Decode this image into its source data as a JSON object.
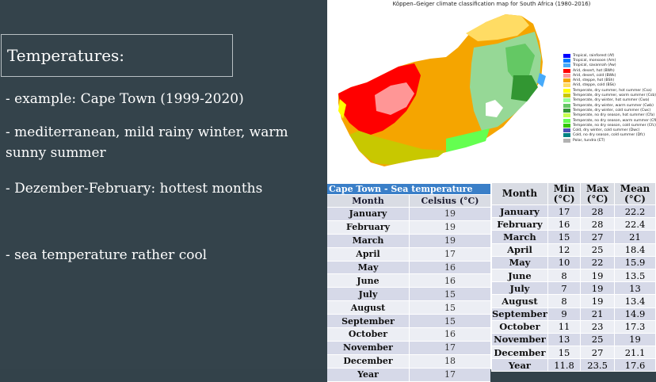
{
  "slide": {
    "heading": "Temperatures:",
    "bullets": [
      "- example: Cape Town (1999-2020)",
      "- mediterranean, mild rainy winter, warm sunny summer",
      "- Dezember-February: hottest months",
      "- sea temperature rather cool"
    ]
  },
  "map": {
    "title": "Köppen–Geiger climate classification map for South Africa (1980–2016)",
    "legend": [
      {
        "label": "Tropical, rainforest (Af)",
        "color": "#0000ff"
      },
      {
        "label": "Tropical, monsoon (Am)",
        "color": "#0078ff"
      },
      {
        "label": "Tropical, savannah (Aw)",
        "color": "#46aafa"
      },
      {
        "label": "Arid, desert, hot (BWh)",
        "color": "#ff0000"
      },
      {
        "label": "Arid, desert, cold (BWk)",
        "color": "#ff9696"
      },
      {
        "label": "Arid, steppe, hot (BSh)",
        "color": "#f5a500"
      },
      {
        "label": "Arid, steppe, cold (BSk)",
        "color": "#ffdc64"
      },
      {
        "label": "Temperate, dry summer, hot summer (Csa)",
        "color": "#ffff00"
      },
      {
        "label": "Temperate, dry summer, warm summer (Csb)",
        "color": "#c8c800"
      },
      {
        "label": "Temperate, dry winter, hot summer (Cwa)",
        "color": "#96ff96"
      },
      {
        "label": "Temperate, dry winter, warm summer (Cwb)",
        "color": "#64c864"
      },
      {
        "label": "Temperate, dry winter, cold summer (Cwc)",
        "color": "#329632"
      },
      {
        "label": "Temperate, no dry season, hot summer (Cfa)",
        "color": "#c8ff50"
      },
      {
        "label": "Temperate, no dry season, warm summer (Cfb)",
        "color": "#64ff50"
      },
      {
        "label": "Temperate, no dry season, cold summer (Cfc)",
        "color": "#32c800"
      },
      {
        "label": "Cold, dry winter, cold summer (Dwc)",
        "color": "#4b50b4"
      },
      {
        "label": "Cold, no dry season, cold summer (Dfc)",
        "color": "#008282"
      },
      {
        "label": "Polar, tundra (ET)",
        "color": "#b2b2b2"
      }
    ]
  },
  "sea_table": {
    "caption": "Cape Town - Sea temperature",
    "headers": [
      "Month",
      "Celsius (°C)"
    ],
    "rows": [
      [
        "January",
        "19"
      ],
      [
        "February",
        "19"
      ],
      [
        "March",
        "19"
      ],
      [
        "April",
        "17"
      ],
      [
        "May",
        "16"
      ],
      [
        "June",
        "16"
      ],
      [
        "July",
        "15"
      ],
      [
        "August",
        "15"
      ],
      [
        "September",
        "15"
      ],
      [
        "October",
        "16"
      ],
      [
        "November",
        "17"
      ],
      [
        "December",
        "18"
      ],
      [
        "Year",
        "17"
      ]
    ]
  },
  "air_table": {
    "headers": [
      "Month",
      "Min (°C)",
      "Max (°C)",
      "Mean (°C)"
    ],
    "rows": [
      [
        "January",
        "17",
        "28",
        "22.2"
      ],
      [
        "February",
        "16",
        "28",
        "22.4"
      ],
      [
        "March",
        "15",
        "27",
        "21"
      ],
      [
        "April",
        "12",
        "25",
        "18.4"
      ],
      [
        "May",
        "10",
        "22",
        "15.9"
      ],
      [
        "June",
        "8",
        "19",
        "13.5"
      ],
      [
        "July",
        "7",
        "19",
        "13"
      ],
      [
        "August",
        "8",
        "19",
        "13.4"
      ],
      [
        "September",
        "9",
        "21",
        "14.9"
      ],
      [
        "October",
        "11",
        "23",
        "17.3"
      ],
      [
        "November",
        "13",
        "25",
        "19"
      ],
      [
        "December",
        "15",
        "27",
        "21.1"
      ],
      [
        "Year",
        "11.8",
        "23.5",
        "17.6"
      ]
    ]
  }
}
